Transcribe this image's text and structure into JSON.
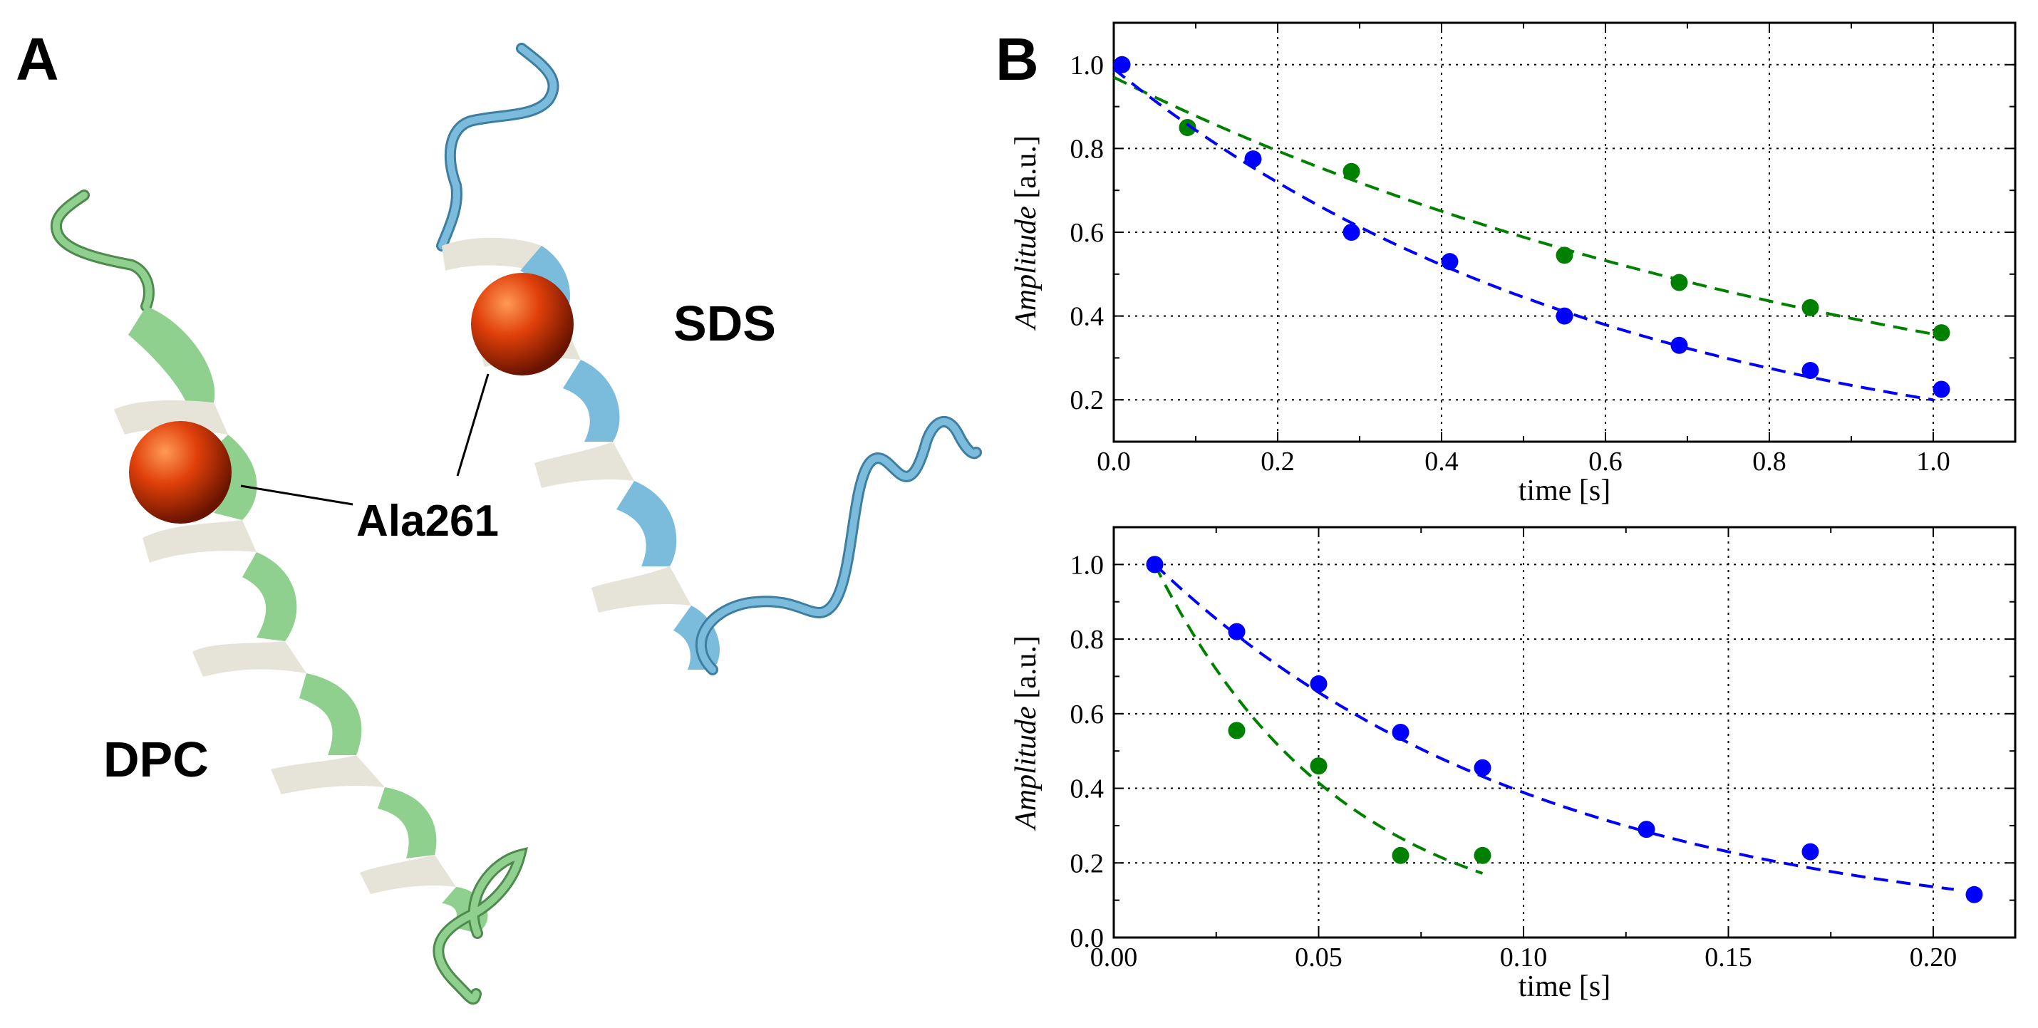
{
  "panel_a": {
    "letter": "A",
    "labels": {
      "sds": "SDS",
      "dpc": "DPC",
      "residue": "Ala261"
    },
    "colors": {
      "dpc_helix": "#8fd08f",
      "sds_helix": "#7bbbdc",
      "helix_inner": "#e6e3d8",
      "sphere": "#e0400a"
    }
  },
  "panel_b": {
    "letter": "B"
  },
  "chart_data": [
    {
      "type": "scatter",
      "title": "",
      "xlabel": "time [s]",
      "ylabel_italic": "Amplitude",
      "ylabel_unit": "[a.u.]",
      "xlim": [
        0,
        1.1
      ],
      "ylim": [
        0.1,
        1.1
      ],
      "xticks": [
        "0.0",
        "0.2",
        "0.4",
        "0.6",
        "0.8",
        "1.0"
      ],
      "xtick_values": [
        0,
        0.2,
        0.4,
        0.6,
        0.8,
        1.0
      ],
      "yticks": [
        "0.2",
        "0.4",
        "0.6",
        "0.8",
        "1.0"
      ],
      "ytick_values": [
        0.2,
        0.4,
        0.6,
        0.8,
        1.0
      ],
      "grid": true,
      "series": [
        {
          "color": "#008000",
          "x": [
            0.01,
            0.09,
            0.29,
            0.55,
            0.69,
            0.85,
            1.01
          ],
          "y": [
            1.0,
            0.85,
            0.745,
            0.545,
            0.48,
            0.42,
            0.36
          ],
          "fit_y0": 0.97,
          "fit_k": 1.0
        },
        {
          "color": "#0000ff",
          "x": [
            0.01,
            0.17,
            0.29,
            0.41,
            0.55,
            0.69,
            0.85,
            1.01
          ],
          "y": [
            1.0,
            0.775,
            0.6,
            0.53,
            0.4,
            0.33,
            0.27,
            0.225
          ],
          "fit_y0": 0.99,
          "fit_k": 1.6
        }
      ]
    },
    {
      "type": "scatter",
      "title": "",
      "xlabel": "time [s]",
      "ylabel_italic": "Amplitude",
      "ylabel_unit": "[a.u.]",
      "xlim": [
        0,
        0.22
      ],
      "ylim": [
        0,
        1.1
      ],
      "xticks": [
        "0.00",
        "0.05",
        "0.10",
        "0.15",
        "0.20"
      ],
      "xtick_values": [
        0,
        0.05,
        0.1,
        0.15,
        0.2
      ],
      "yticks": [
        "0.0",
        "0.2",
        "0.4",
        "0.6",
        "0.8",
        "1.0"
      ],
      "ytick_values": [
        0,
        0.2,
        0.4,
        0.6,
        0.8,
        1.0
      ],
      "grid": true,
      "series": [
        {
          "color": "#008000",
          "x": [
            0.01,
            0.03,
            0.05,
            0.07,
            0.09
          ],
          "y": [
            1.0,
            0.555,
            0.46,
            0.22,
            0.22
          ],
          "fit_x0": 0.01,
          "fit_x1": 0.09,
          "fit_y0": 1.0,
          "fit_k": 22
        },
        {
          "color": "#0000ff",
          "x": [
            0.01,
            0.03,
            0.05,
            0.07,
            0.09,
            0.13,
            0.17,
            0.21
          ],
          "y": [
            1.0,
            0.82,
            0.68,
            0.55,
            0.455,
            0.29,
            0.23,
            0.115
          ],
          "fit_x0": 0.01,
          "fit_x1": 0.205,
          "fit_y0": 1.0,
          "fit_k": 10.5
        }
      ]
    }
  ]
}
